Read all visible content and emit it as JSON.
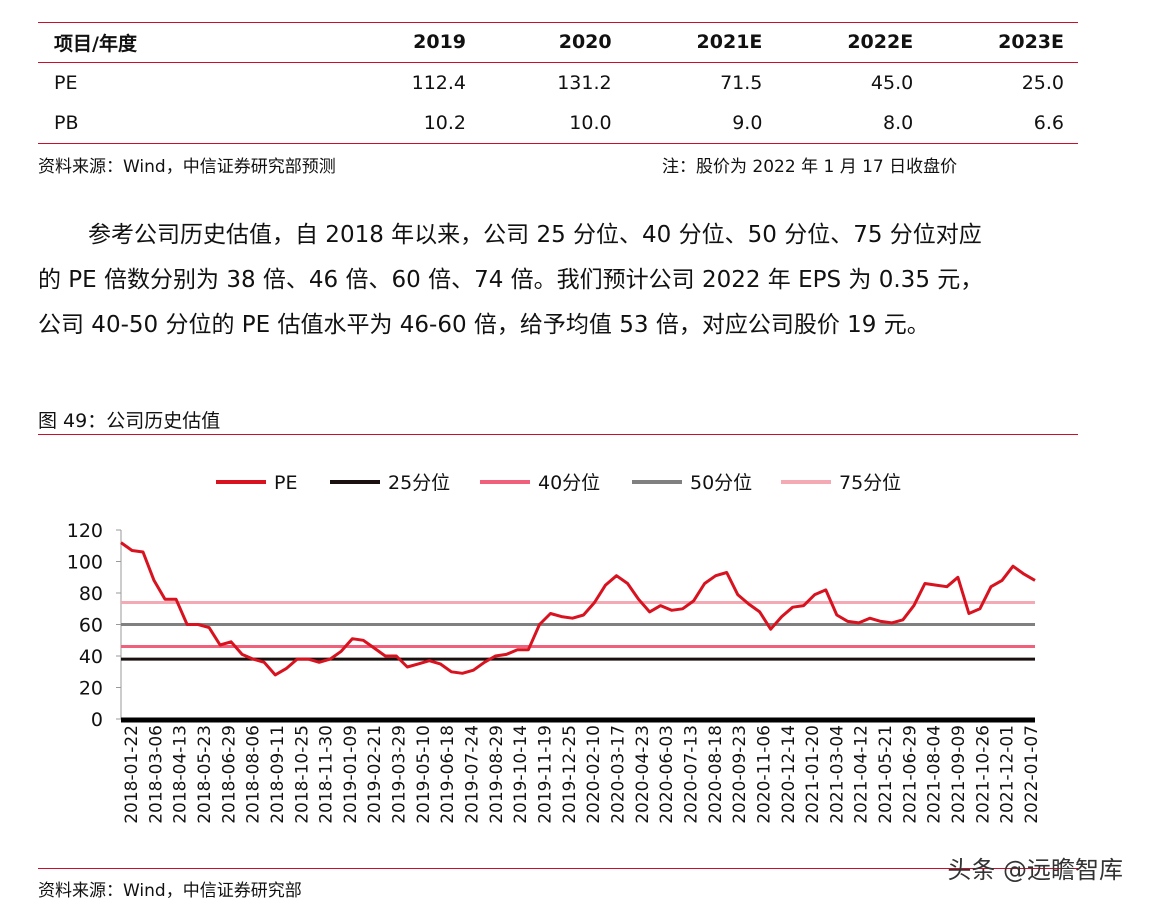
{
  "valuation_table": {
    "header": [
      "项目/年度",
      "2019",
      "2020",
      "2021E",
      "2022E",
      "2023E"
    ],
    "rows": [
      [
        "PE",
        "112.4",
        "131.2",
        "71.5",
        "45.0",
        "25.0"
      ],
      [
        "PB",
        "10.2",
        "10.0",
        "9.0",
        "8.0",
        "6.6"
      ]
    ]
  },
  "table_source": "资料来源：Wind，中信证券研究部预测",
  "table_note": "注：股价为 2022 年 1 月 17 日收盘价",
  "paragraph": {
    "line1": "参考公司历史估值，自 2018 年以来，公司 25 分位、40 分位、50 分位、75 分位对应",
    "line2": "的 PE 倍数分别为 38 倍、46 倍、60 倍、74 倍。我们预计公司 2022 年 EPS 为 0.35 元，",
    "line3": "公司 40-50 分位的 PE 估值水平为 46-60 倍，给予均值 53 倍，对应公司股价 19 元。"
  },
  "figure_title": "图 49：公司历史估值",
  "figure_source": "资料来源：Wind，中信证券研究部",
  "watermark": "头条 @远瞻智库",
  "colors": {
    "accent_red": "#c8102e"
  },
  "chart_data": {
    "type": "line",
    "ylim": [
      0,
      120
    ],
    "yticks": [
      0,
      20,
      40,
      60,
      80,
      100,
      120
    ],
    "legend_position": "top",
    "xticks": [
      "2018-01-22",
      "2018-03-06",
      "2018-04-13",
      "2018-05-23",
      "2018-06-29",
      "2018-08-06",
      "2018-09-11",
      "2018-10-25",
      "2018-11-30",
      "2019-01-09",
      "2019-02-21",
      "2019-03-29",
      "2019-05-10",
      "2019-06-18",
      "2019-07-24",
      "2019-08-29",
      "2019-10-14",
      "2019-11-19",
      "2019-12-25",
      "2020-02-10",
      "2020-03-17",
      "2020-04-23",
      "2020-06-03",
      "2020-07-13",
      "2020-08-18",
      "2020-09-23",
      "2020-11-06",
      "2020-12-14",
      "2021-01-20",
      "2021-03-04",
      "2021-04-12",
      "2021-05-21",
      "2021-06-29",
      "2021-08-04",
      "2021-09-09",
      "2021-10-26",
      "2021-12-01",
      "2022-01-07"
    ],
    "series": [
      {
        "name": "PE",
        "color": "#d8121f",
        "values": [
          112,
          107,
          106,
          88,
          76,
          76,
          60,
          60,
          58,
          47,
          49,
          41,
          38,
          36,
          28,
          32,
          38,
          38,
          36,
          38,
          43,
          51,
          50,
          45,
          40,
          40,
          33,
          35,
          37,
          35,
          30,
          29,
          31,
          36,
          40,
          41,
          44,
          44,
          60,
          67,
          65,
          64,
          66,
          74,
          85,
          91,
          86,
          76,
          68,
          72,
          69,
          70,
          75,
          86,
          91,
          93,
          79,
          73,
          68,
          57,
          65,
          71,
          72,
          79,
          82,
          66,
          62,
          61,
          64,
          62,
          61,
          63,
          72,
          86,
          85,
          84,
          90,
          67,
          70,
          84,
          88,
          97,
          92,
          88
        ]
      },
      {
        "name": "25分位",
        "color": "#1a1010",
        "constant": 38
      },
      {
        "name": "40分位",
        "color": "#f0607a",
        "constant": 46
      },
      {
        "name": "50分位",
        "color": "#808080",
        "constant": 60
      },
      {
        "name": "75分位",
        "color": "#f4aab5",
        "constant": 74
      }
    ]
  }
}
